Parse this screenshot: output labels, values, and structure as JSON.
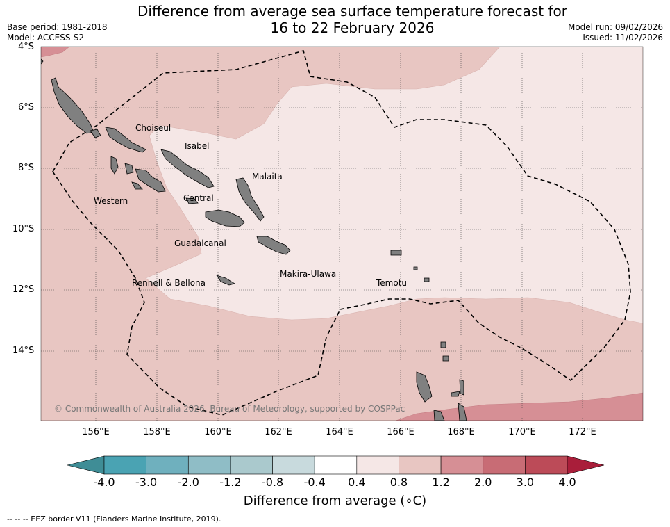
{
  "title_line1": "Difference from average sea surface temperature forecast for",
  "title_line2": "16 to 22 February 2026",
  "meta_left": [
    "Base period: 1981-2018",
    "Model: ACCESS-S2"
  ],
  "meta_right": [
    "Model run: 09/02/2026",
    "Issued: 11/02/2026"
  ],
  "lat_labels": [
    "4°S",
    "6°S",
    "8°S",
    "10°S",
    "12°S",
    "14°S"
  ],
  "lon_labels": [
    "156°E",
    "158°E",
    "160°E",
    "162°E",
    "164°E",
    "166°E",
    "168°E",
    "170°E",
    "172°E"
  ],
  "places": [
    "Choiseul",
    "Isabel",
    "Malaita",
    "Western",
    "Central",
    "Guadalcanal",
    "Rennell & Bellona",
    "Makira-Ulawa",
    "Temotu"
  ],
  "copyright": "© Commonwealth of Australia 2026, Bureau of Meteorology, supported by COSPPac",
  "colorbar": {
    "ticks": [
      "-4.0",
      "-3.0",
      "-2.0",
      "-1.2",
      "-0.8",
      "-0.4",
      "0.4",
      "0.8",
      "1.2",
      "2.0",
      "3.0",
      "4.0"
    ],
    "colors": [
      "#4aa3b3",
      "#6fb0be",
      "#8fbdc6",
      "#aac9cd",
      "#c8dadd",
      "#ffffff",
      "#f5e7e6",
      "#e8c6c2",
      "#d68f95",
      "#c86c75",
      "#bc4b58"
    ],
    "below_color": "#3f8d96",
    "above_color": "#a91e3a",
    "label": "Difference from average (∘C)"
  },
  "footer": "--  --  -- EEZ border V11 (Flanders Marine Institute, 2019).",
  "map_colors": {
    "band_0.4_0.8": "#f5e7e6",
    "band_0.8_1.2": "#e8c6c2",
    "band_1.2_2.0": "#d68f95",
    "land": "#808080"
  }
}
